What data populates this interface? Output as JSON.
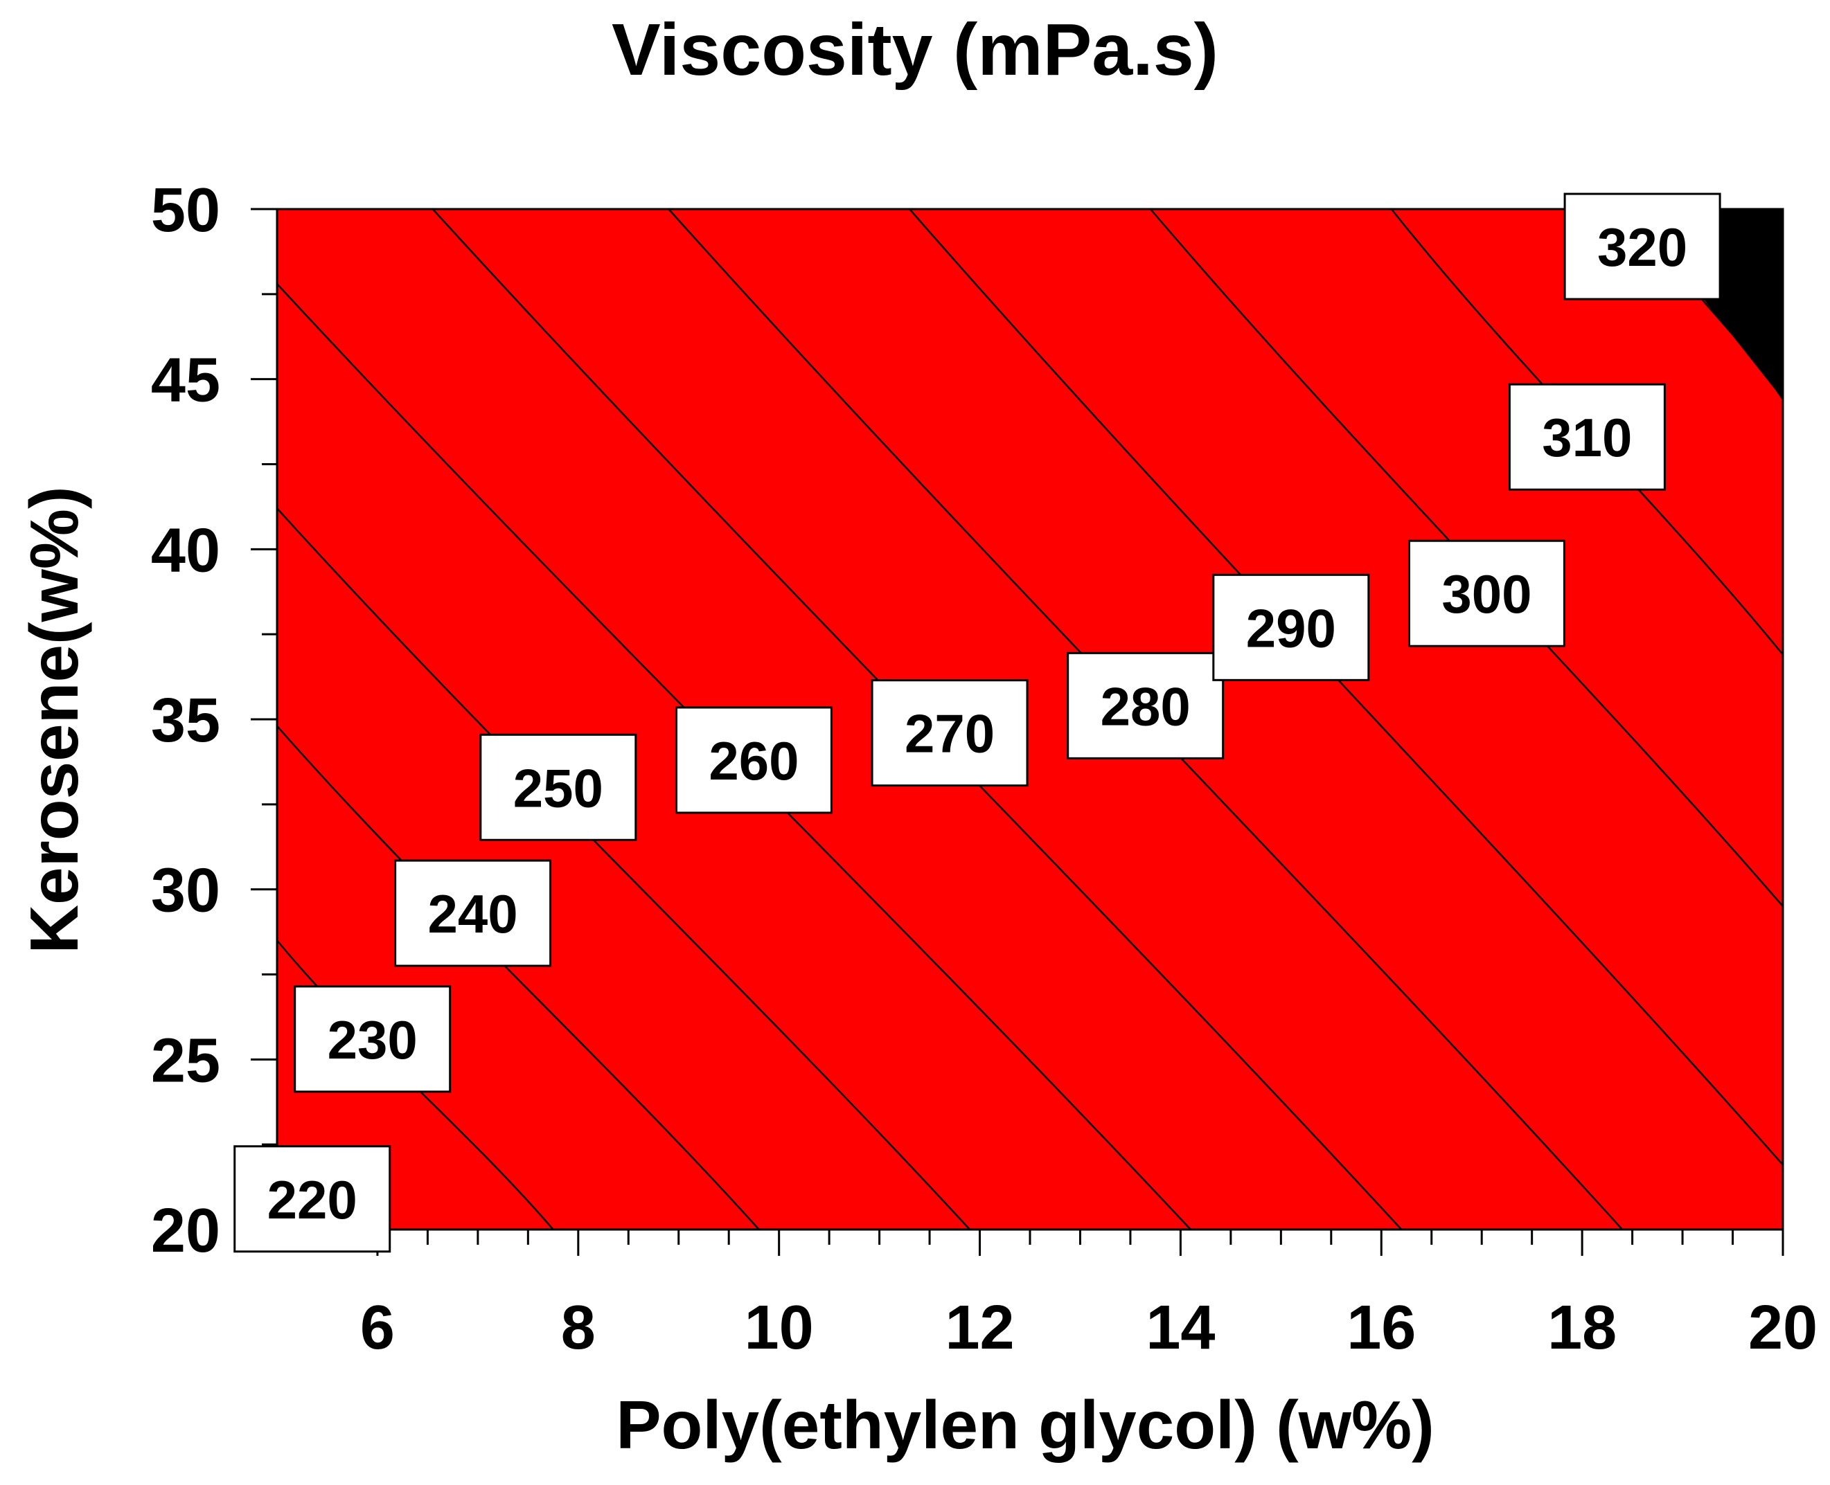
{
  "chart_data": {
    "type": "contour",
    "title": "Viscosity (mPa.s)",
    "xlabel": "Poly(ethylen glycol) (w%)",
    "ylabel": "Kerosene(w%)",
    "xlim": [
      5,
      20
    ],
    "ylim": [
      20,
      50
    ],
    "x_ticks": [
      6,
      8,
      10,
      12,
      14,
      16,
      18,
      20
    ],
    "y_ticks": [
      20,
      25,
      30,
      35,
      40,
      45,
      50
    ],
    "x_tick_labels": [
      "6",
      "8",
      "10",
      "12",
      "14",
      "16",
      "18",
      "20"
    ],
    "y_tick_labels": [
      "20",
      "25",
      "30",
      "35",
      "40",
      "45",
      "50"
    ],
    "contour_levels": [
      220,
      230,
      240,
      250,
      260,
      270,
      280,
      290,
      300,
      310,
      320
    ],
    "contour_labels": [
      "220",
      "230",
      "240",
      "250",
      "260",
      "270",
      "280",
      "290",
      "300",
      "310",
      "320"
    ],
    "level_lines": [
      {
        "level": 230,
        "bottom_x": 7.75,
        "left_y": 28.5
      },
      {
        "level": 240,
        "bottom_x": 9.8,
        "left_y": 34.8
      },
      {
        "level": 250,
        "bottom_x": 11.9,
        "left_y": 41.2
      },
      {
        "level": 260,
        "bottom_x": 14.1,
        "left_y": 47.8
      },
      {
        "level": 270,
        "top_x": 6.55,
        "bottom_x": 16.2
      },
      {
        "level": 280,
        "top_x": 8.9,
        "bottom_x": 18.4
      },
      {
        "level": 290,
        "top_x": 11.3,
        "right_y": 21.9
      },
      {
        "level": 300,
        "top_x": 13.7,
        "right_y": 29.5
      },
      {
        "level": 310,
        "top_x": 16.1,
        "right_y": 36.9
      },
      {
        "level": 320,
        "top_x": 18.5,
        "right_y": 44.4
      }
    ],
    "band_colors": [
      "#0045ff",
      "#0095ff",
      "#00e8ff",
      "#00ff6e",
      "#00f000",
      "#a0ff00",
      "#ffff00",
      "#ffaa00",
      "#ff5a00",
      "#ff0000"
    ],
    "grid": false
  }
}
